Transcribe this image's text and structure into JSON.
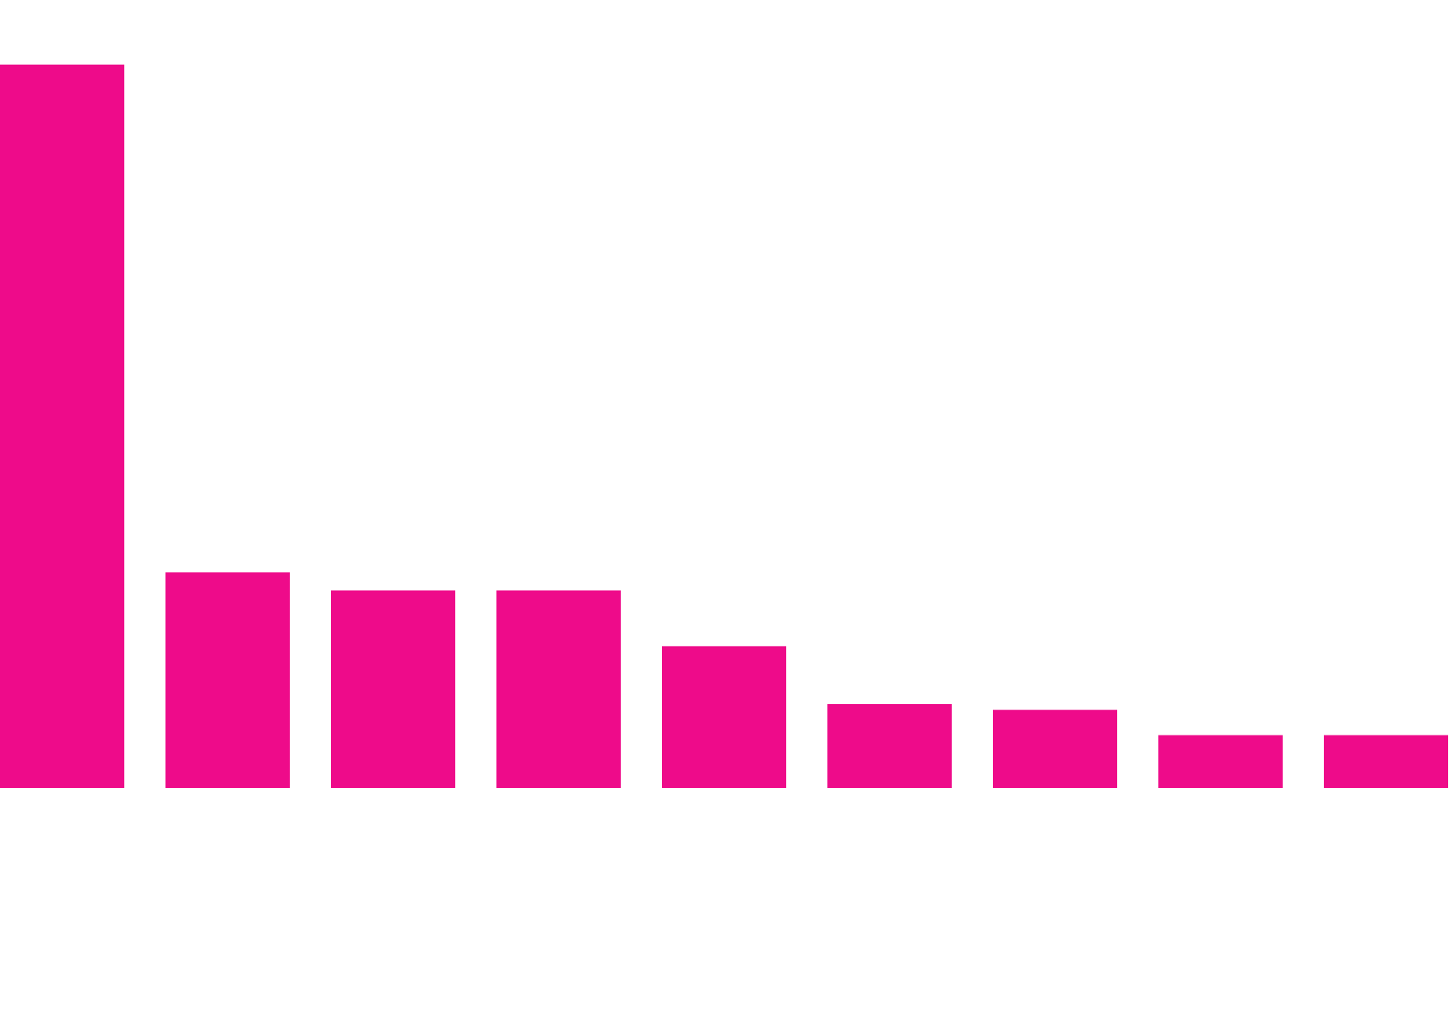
{
  "chart_data": {
    "type": "bar",
    "categories": [
      "",
      "",
      "",
      "",
      "",
      "",
      "",
      "",
      ""
    ],
    "values": [
      100,
      29.8,
      27.3,
      27.3,
      19.6,
      11.6,
      10.8,
      7.3,
      7.3
    ],
    "ylim": [
      0,
      100
    ],
    "grid": false,
    "legend": "none",
    "colors": {
      "bar": "#ee0b8a",
      "background": "#ffffff"
    }
  }
}
